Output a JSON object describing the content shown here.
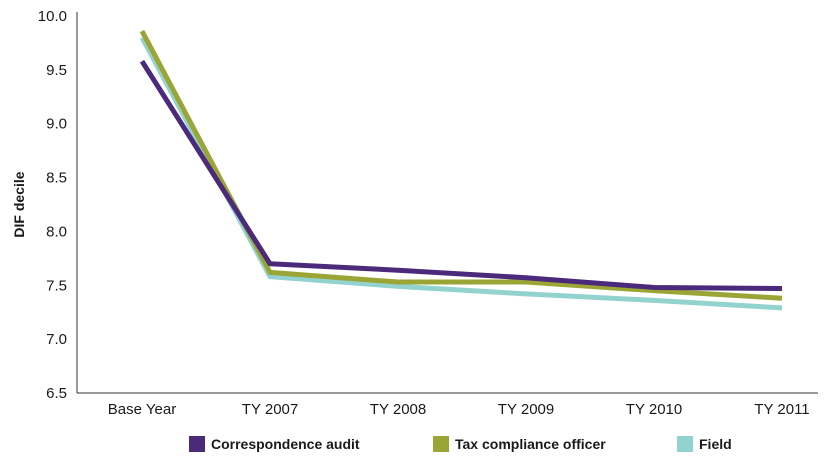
{
  "chart_data": {
    "type": "line",
    "title": "",
    "xlabel": "",
    "ylabel": "DIF decile",
    "categories": [
      "Base Year",
      "TY 2007",
      "TY 2008",
      "TY 2009",
      "TY 2010",
      "TY 2011"
    ],
    "ylim": [
      6.5,
      10.0
    ],
    "yticks": [
      "6.5",
      "7.0",
      "7.5",
      "8.0",
      "8.5",
      "9.0",
      "9.5",
      "10.0"
    ],
    "grid": false,
    "legend_position": "bottom",
    "series": [
      {
        "name": "Correspondence audit",
        "color": "#4b2a7b",
        "values": [
          9.58,
          7.7,
          7.64,
          7.57,
          7.48,
          7.47
        ]
      },
      {
        "name": "Tax compliance officer",
        "color": "#9aa535",
        "values": [
          9.86,
          7.62,
          7.53,
          7.53,
          7.45,
          7.38
        ]
      },
      {
        "name": "Field",
        "color": "#93d3cf",
        "values": [
          9.8,
          7.58,
          7.49,
          7.42,
          7.36,
          7.29
        ]
      }
    ]
  }
}
